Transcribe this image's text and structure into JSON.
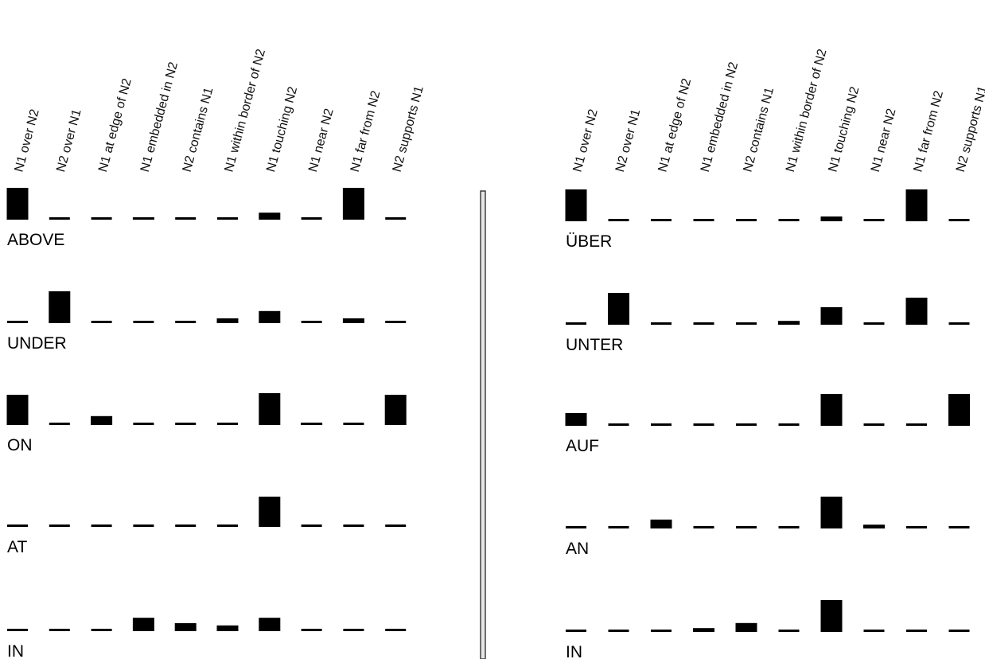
{
  "chart_data": [
    {
      "type": "bar",
      "columns": [
        "N1 over N2",
        "N2 over N1",
        "N1 at edge of N2",
        "N1 embedded in N2",
        "N2 contains N1",
        "N1 within border of N2",
        "N1 touching N2",
        "N1 near N2",
        "N1 far from N2",
        "N2 supports N1"
      ],
      "rows": [
        {
          "label": "ABOVE",
          "values": [
            1.0,
            0.0,
            0.0,
            0.05,
            0.0,
            0.0,
            0.22,
            0.02,
            1.0,
            0.0
          ]
        },
        {
          "label": "UNDER",
          "values": [
            0.0,
            1.0,
            0.0,
            0.0,
            0.0,
            0.15,
            0.38,
            0.0,
            0.15,
            0.0
          ]
        },
        {
          "label": "ON",
          "values": [
            0.95,
            0.0,
            0.28,
            0.0,
            0.0,
            0.0,
            1.0,
            0.05,
            0.0,
            0.95
          ]
        },
        {
          "label": "AT",
          "values": [
            0.0,
            0.0,
            0.0,
            0.0,
            0.0,
            0.0,
            0.95,
            0.0,
            0.0,
            0.0
          ]
        },
        {
          "label": "IN",
          "values": [
            0.0,
            0.0,
            0.0,
            0.42,
            0.25,
            0.18,
            0.42,
            0.0,
            0.0,
            0.0
          ]
        }
      ]
    },
    {
      "type": "bar",
      "columns": [
        "N1 over N2",
        "N2 over N1",
        "N1 at edge of N2",
        "N1 embedded in N2",
        "N2 contains N1",
        "N1 within border of N2",
        "N1 touching N2",
        "N1 near N2",
        "N1 far from N2",
        "N2 supports N1"
      ],
      "rows": [
        {
          "label": "ÜBER",
          "values": [
            1.0,
            0.0,
            0.0,
            0.0,
            0.0,
            0.0,
            0.15,
            0.0,
            1.0,
            0.0
          ]
        },
        {
          "label": "UNTER",
          "values": [
            0.0,
            1.0,
            0.0,
            0.0,
            0.0,
            0.12,
            0.55,
            0.0,
            0.85,
            0.0
          ]
        },
        {
          "label": "AUF",
          "values": [
            0.4,
            0.0,
            0.0,
            0.0,
            0.0,
            0.0,
            1.0,
            0.0,
            0.0,
            1.0
          ]
        },
        {
          "label": "AN",
          "values": [
            0.0,
            0.0,
            0.28,
            0.0,
            0.0,
            0.0,
            1.0,
            0.12,
            0.0,
            0.0
          ]
        },
        {
          "label": "IN",
          "values": [
            0.0,
            0.0,
            0.0,
            0.12,
            0.28,
            0.0,
            1.0,
            0.0,
            0.0,
            0.0
          ]
        }
      ]
    }
  ]
}
